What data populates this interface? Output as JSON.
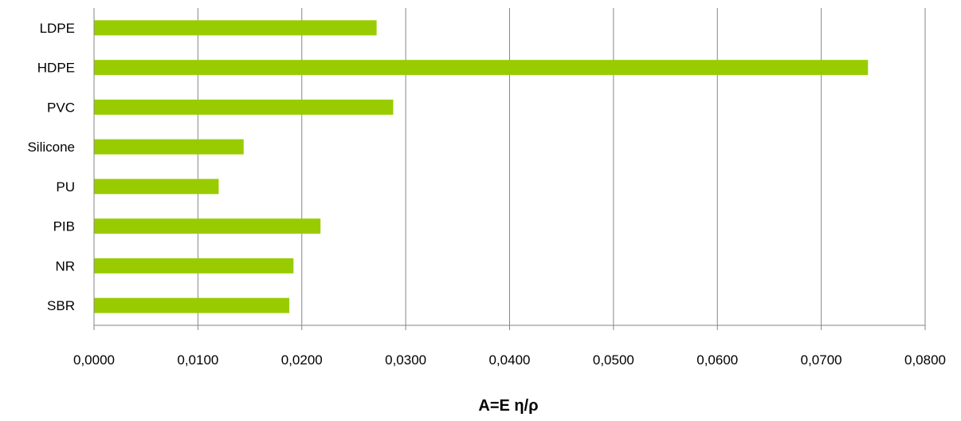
{
  "chart_data": {
    "type": "bar",
    "orientation": "horizontal",
    "categories": [
      "LDPE",
      "HDPE",
      "PVC",
      "Silicone",
      "PU",
      "PIB",
      "NR",
      "SBR"
    ],
    "values": [
      0.0272,
      0.0745,
      0.0288,
      0.0144,
      0.012,
      0.0218,
      0.0192,
      0.0188
    ],
    "xlim": [
      0,
      0.08
    ],
    "xticks": [
      0,
      0.01,
      0.02,
      0.03,
      0.04,
      0.05,
      0.06,
      0.07,
      0.08
    ],
    "tick_labels": [
      "0,0000",
      "0,0100",
      "0,0200",
      "0,0300",
      "0,0400",
      "0,0500",
      "0,0600",
      "0,0700",
      "0,0800"
    ],
    "title": "",
    "xlabel": "A=E η/ρ",
    "ylabel": "",
    "grid": "vertical",
    "legend": "none",
    "bar_color": "#99cc00",
    "grid_color": "#868686"
  }
}
